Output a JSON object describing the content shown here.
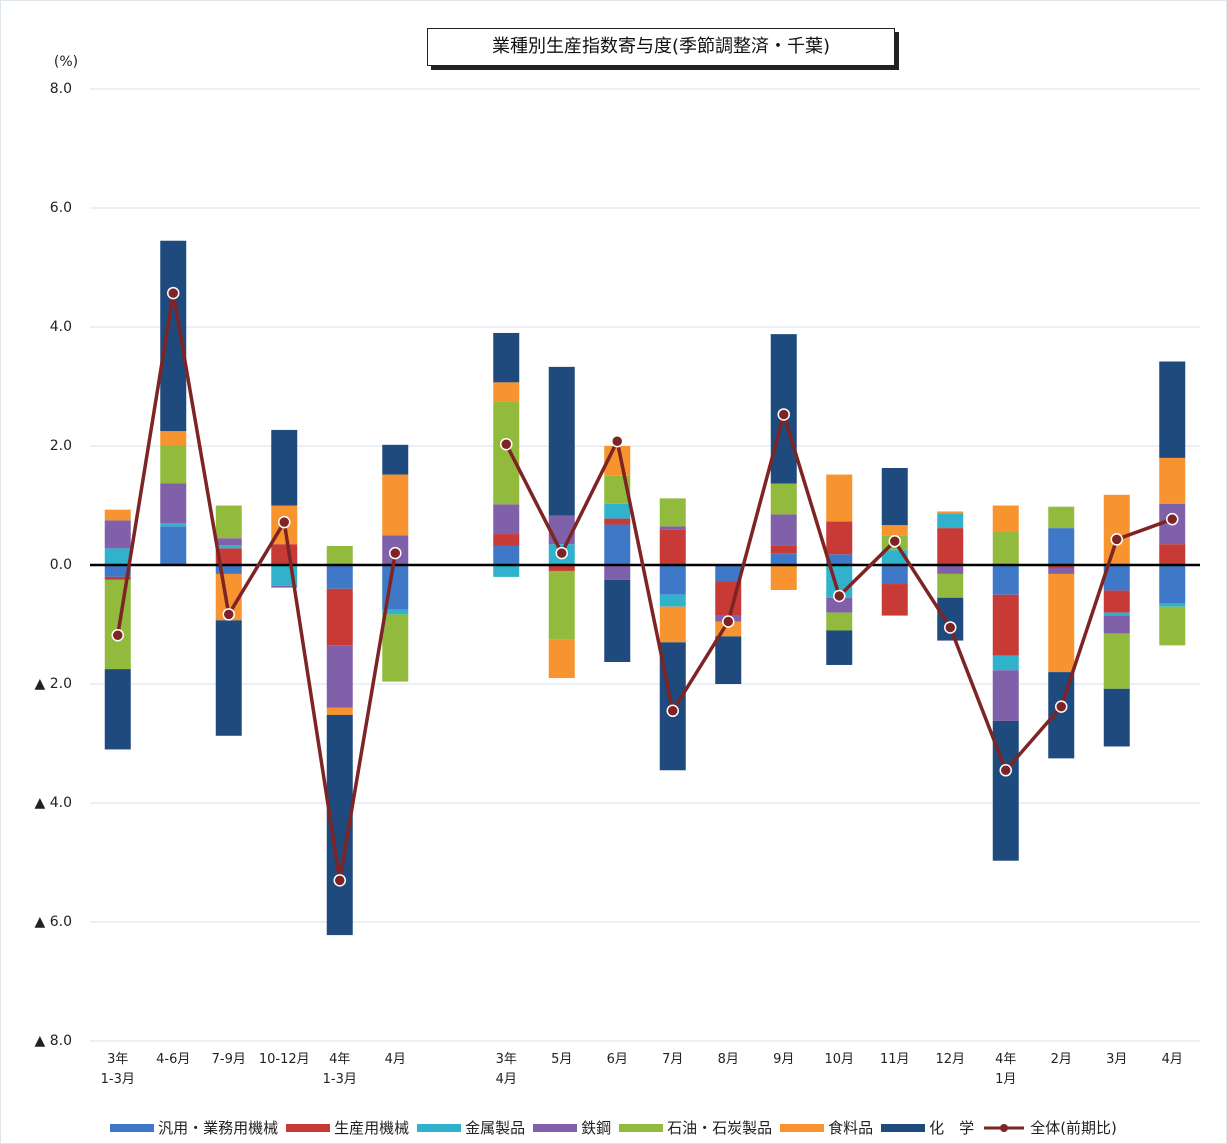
{
  "chart_data": {
    "type": "bar",
    "stacked": true,
    "title": "業種別生産指数寄与度(季節調整済・千葉)",
    "y_unit": "(%)",
    "categories": [
      "3年\n1-3月",
      "4-6月",
      "7-9月",
      "10-12月",
      "4年\n1-3月",
      "4月",
      null,
      "3年\n4月",
      "5月",
      "6月",
      "7月",
      "8月",
      "9月",
      "10月",
      "11月",
      "12月",
      "4年\n1月",
      "2月",
      "3月",
      "4月"
    ],
    "series": [
      {
        "name": "汎用・業務用機械",
        "color": "#3f78c6",
        "values": [
          -0.2,
          0.65,
          -0.15,
          0,
          -0.4,
          -0.75,
          null,
          0.32,
          0,
          0.68,
          -0.5,
          -0.27,
          0.2,
          0.18,
          -0.32,
          0,
          -0.5,
          0.62,
          -0.43,
          -0.65
        ]
      },
      {
        "name": "生産用機械",
        "color": "#c73a35",
        "values": [
          -0.05,
          0,
          0.28,
          0.35,
          -0.95,
          0,
          null,
          0.2,
          -0.1,
          0.1,
          0.6,
          -0.58,
          0.13,
          0.55,
          -0.53,
          0.62,
          -1.02,
          -0.05,
          -0.37,
          0.35
        ]
      },
      {
        "name": "金属製品",
        "color": "#31b2cc",
        "values": [
          0.28,
          0.05,
          0.05,
          -0.35,
          0,
          -0.08,
          null,
          -0.2,
          0.35,
          0.25,
          -0.2,
          0,
          0,
          -0.55,
          0.25,
          0.25,
          -0.25,
          0,
          -0.05,
          -0.05
        ]
      },
      {
        "name": "鉄鋼",
        "color": "#8060a8",
        "values": [
          0.47,
          0.67,
          0.12,
          -0.03,
          -1.05,
          0.5,
          null,
          0.5,
          0.48,
          -0.25,
          0.05,
          -0.1,
          0.52,
          -0.25,
          0,
          -0.15,
          -0.85,
          -0.1,
          -0.3,
          0.68
        ]
      },
      {
        "name": "石油・石炭製品",
        "color": "#92bb3e",
        "values": [
          -1.5,
          0.63,
          0.55,
          0,
          0.32,
          -1.13,
          null,
          1.73,
          -1.15,
          0.47,
          0.47,
          0,
          0.52,
          -0.3,
          0.25,
          -0.4,
          0.57,
          0.36,
          -0.93,
          -0.65
        ]
      },
      {
        "name": "食料品",
        "color": "#f7942f",
        "values": [
          0.18,
          0.25,
          -0.78,
          0.65,
          -0.12,
          1.02,
          null,
          0.32,
          -0.65,
          0.5,
          -0.6,
          -0.25,
          -0.42,
          0.79,
          0.17,
          0.03,
          0.43,
          -1.65,
          1.18,
          0.77
        ]
      },
      {
        "name": "化　学",
        "color": "#1f4a7e",
        "values": [
          -1.35,
          3.2,
          -1.94,
          1.27,
          -3.7,
          0.5,
          null,
          0.83,
          2.5,
          -1.38,
          -2.15,
          -0.8,
          2.51,
          -0.58,
          0.96,
          -0.72,
          -2.35,
          -1.45,
          -0.97,
          1.62
        ]
      }
    ],
    "line": {
      "name": "全体(前期比)",
      "color": "#7e2424",
      "values": [
        -1.18,
        4.57,
        -0.83,
        0.72,
        -5.3,
        0.2,
        null,
        2.03,
        0.2,
        2.08,
        -2.45,
        -0.95,
        2.53,
        -0.52,
        0.4,
        -1.05,
        -3.45,
        -2.38,
        0.43,
        0.77
      ]
    },
    "ylim": [
      -8,
      8
    ],
    "yticks": [
      {
        "value": 8,
        "label": "8.0"
      },
      {
        "value": 6,
        "label": "6.0"
      },
      {
        "value": 4,
        "label": "4.0"
      },
      {
        "value": 2,
        "label": "2.0"
      },
      {
        "value": 0,
        "label": "0.0"
      },
      {
        "value": -2,
        "label": "▲ 2.0"
      },
      {
        "value": -4,
        "label": "▲ 4.0"
      },
      {
        "value": -6,
        "label": "▲ 6.0"
      },
      {
        "value": -8,
        "label": "▲ 8.0"
      }
    ],
    "grid": true
  }
}
